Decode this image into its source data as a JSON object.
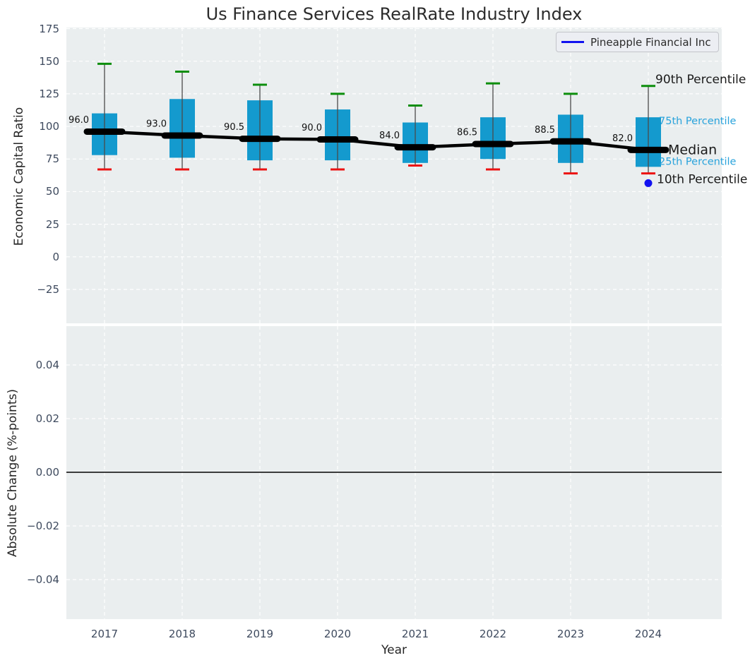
{
  "chart_data": {
    "type": "boxplot",
    "title": "Us Finance Services RealRate Industry Index",
    "xlabel": "Year",
    "categories": [
      "2017",
      "2018",
      "2019",
      "2020",
      "2021",
      "2022",
      "2023",
      "2024"
    ],
    "legend": {
      "label": "Pineapple Financial Inc"
    },
    "top_panel": {
      "ylabel": "Economic Capital Ratio",
      "ylim": [
        -51,
        176
      ],
      "grid": "white dashed",
      "yticks": [
        {
          "label": "175",
          "value": 175
        },
        {
          "label": "150",
          "value": 150
        },
        {
          "label": "125",
          "value": 125
        },
        {
          "label": "100",
          "value": 100
        },
        {
          "label": "75",
          "value": 75
        },
        {
          "label": "50",
          "value": 50
        },
        {
          "label": "25",
          "value": 25
        },
        {
          "label": "0",
          "value": 0
        },
        {
          "label": "−25",
          "value": -25
        }
      ],
      "boxes": [
        {
          "year": "2017",
          "p90": 148,
          "p75": 110,
          "median": 96.0,
          "p25": 78,
          "p10": 67,
          "median_label": "96.0"
        },
        {
          "year": "2018",
          "p90": 142,
          "p75": 121,
          "median": 93.0,
          "p25": 76,
          "p10": 67,
          "median_label": "93.0"
        },
        {
          "year": "2019",
          "p90": 132,
          "p75": 120,
          "median": 90.5,
          "p25": 74,
          "p10": 67,
          "median_label": "90.5"
        },
        {
          "year": "2020",
          "p90": 125,
          "p75": 113,
          "median": 90.0,
          "p25": 74,
          "p10": 67,
          "median_label": "90.0"
        },
        {
          "year": "2021",
          "p90": 116,
          "p75": 103,
          "median": 84.0,
          "p25": 72,
          "p10": 70,
          "median_label": "84.0"
        },
        {
          "year": "2022",
          "p90": 133,
          "p75": 107,
          "median": 86.5,
          "p25": 75,
          "p10": 67,
          "median_label": "86.5"
        },
        {
          "year": "2023",
          "p90": 125,
          "p75": 109,
          "median": 88.5,
          "p25": 72,
          "p10": 64,
          "median_label": "88.5"
        },
        {
          "year": "2024",
          "p90": 131,
          "p75": 107,
          "median": 82.0,
          "p25": 69,
          "p10": 64,
          "median_label": "82.0"
        }
      ],
      "company_point": {
        "year": "2024",
        "value": 56.5
      },
      "annotations": [
        {
          "key": "p90",
          "label": "90th Percentile",
          "color": "#1a1a1a",
          "size": 17
        },
        {
          "key": "p75",
          "label": "75th Percentile",
          "color": "#29A3DC",
          "size": 14.5
        },
        {
          "key": "median",
          "label": "Median",
          "color": "#1a1a1a",
          "size": 19
        },
        {
          "key": "p25",
          "label": "25th Percentile",
          "color": "#29A3DC",
          "size": 14.5
        },
        {
          "key": "p10",
          "label": "10th Percentile",
          "color": "#1a1a1a",
          "size": 17
        }
      ]
    },
    "bottom_panel": {
      "ylabel": "Absolute Change (%-points)",
      "ylim": [
        -0.0545,
        0.0545
      ],
      "zero_line": 0.0,
      "yticks": [
        {
          "label": "0.04",
          "value": 0.04
        },
        {
          "label": "0.02",
          "value": 0.02
        },
        {
          "label": "0.00",
          "value": 0.0
        },
        {
          "label": "−0.02",
          "value": -0.02
        },
        {
          "label": "−0.04",
          "value": -0.04
        }
      ]
    },
    "colors": {
      "box_fill": "#149ACE",
      "whisker": "#4a4a4a",
      "cap_top": "#0C8E0C",
      "cap_bottom": "#EC1212",
      "median_line": "#000000",
      "company_point": "#1212F0",
      "annotation_blue": "#29A3DC",
      "panel_bg": "#EAEEEF",
      "grid": "#FFFFFF",
      "tick_text": "#3E4A5E",
      "title_text": "#2B2B2B"
    }
  }
}
